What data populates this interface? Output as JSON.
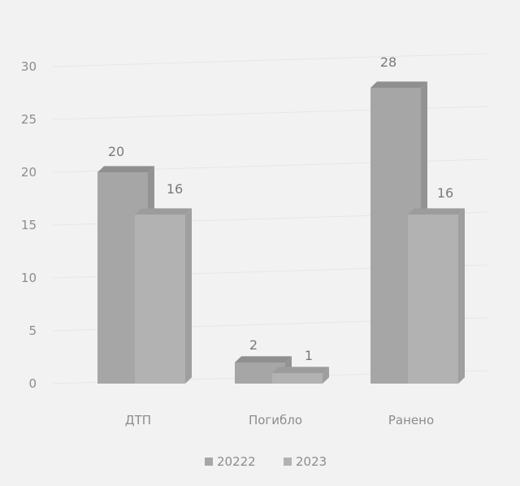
{
  "chart_data": {
    "type": "bar",
    "categories": [
      "ДТП",
      "Погибло",
      "Ранено"
    ],
    "series": [
      {
        "name": "20222",
        "values": [
          20,
          2,
          28
        ]
      },
      {
        "name": "2023",
        "values": [
          16,
          1,
          16
        ]
      }
    ],
    "ylim": [
      0,
      30
    ],
    "yticks": [
      "0",
      "5",
      "10",
      "15",
      "20",
      "25",
      "30"
    ],
    "grid": true,
    "legend": "bottom",
    "colors": {
      "series_front": [
        "#a6a6a6",
        "#b2b2b2"
      ],
      "series_top": [
        "#8f8f8f",
        "#9c9c9c"
      ],
      "series_side": [
        "#939393",
        "#9f9f9f"
      ]
    }
  }
}
